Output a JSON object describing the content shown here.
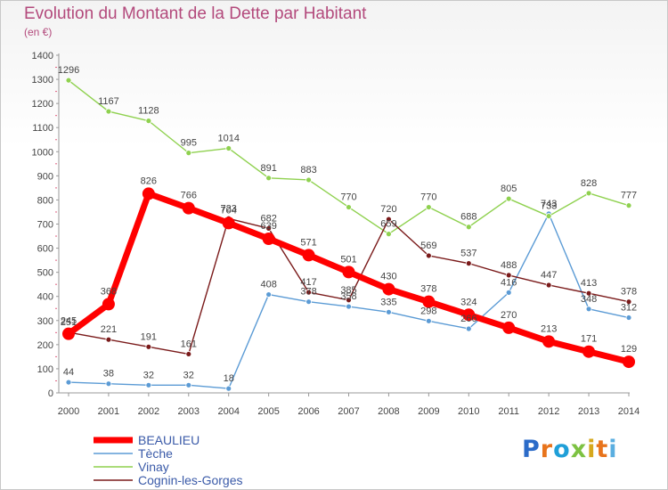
{
  "header": {
    "title": "Evolution du Montant de la Dette par Habitant",
    "subtitle": "(en €)"
  },
  "chart_data": {
    "type": "line",
    "title": "Evolution du Montant de la Dette par Habitant",
    "ylabel": "(en €)",
    "xlabel": "",
    "ylim": [
      0,
      1400
    ],
    "yticks": [
      0,
      100,
      200,
      300,
      400,
      500,
      600,
      700,
      800,
      900,
      1000,
      1100,
      1200,
      1300,
      1400
    ],
    "x": [
      "2000",
      "2001",
      "2002",
      "2003",
      "2004",
      "2005",
      "2006",
      "2007",
      "2008",
      "2009",
      "2010",
      "2011",
      "2012",
      "2013",
      "2014"
    ],
    "grid": false,
    "legend_position": "bottom-left",
    "series": [
      {
        "name": "BEAULIEU",
        "color": "#ff0000",
        "emphasis": true,
        "values": [
          245,
          368,
          826,
          766,
          704,
          639,
          571,
          501,
          430,
          378,
          324,
          270,
          213,
          171,
          129
        ]
      },
      {
        "name": "Tèche",
        "color": "#5b9bd5",
        "values": [
          44,
          38,
          32,
          32,
          18,
          408,
          378,
          358,
          335,
          298,
          266,
          416,
          743,
          348,
          312
        ]
      },
      {
        "name": "Vinay",
        "color": "#8fd14f",
        "values": [
          1296,
          1167,
          1128,
          995,
          1014,
          891,
          883,
          770,
          659,
          770,
          688,
          805,
          733,
          828,
          777
        ]
      },
      {
        "name": "Cognin-les-Gorges",
        "color": "#7a1a1a",
        "values": [
          251,
          221,
          191,
          161,
          723,
          682,
          417,
          385,
          720,
          569,
          537,
          488,
          447,
          413,
          378
        ]
      }
    ]
  },
  "logo": {
    "text": "Proxiti",
    "colors": [
      "#2b6bc8",
      "#e8741c",
      "#1f9fd8",
      "#7dc242",
      "#d6a81d",
      "#e8741c",
      "#5aaee0"
    ]
  }
}
